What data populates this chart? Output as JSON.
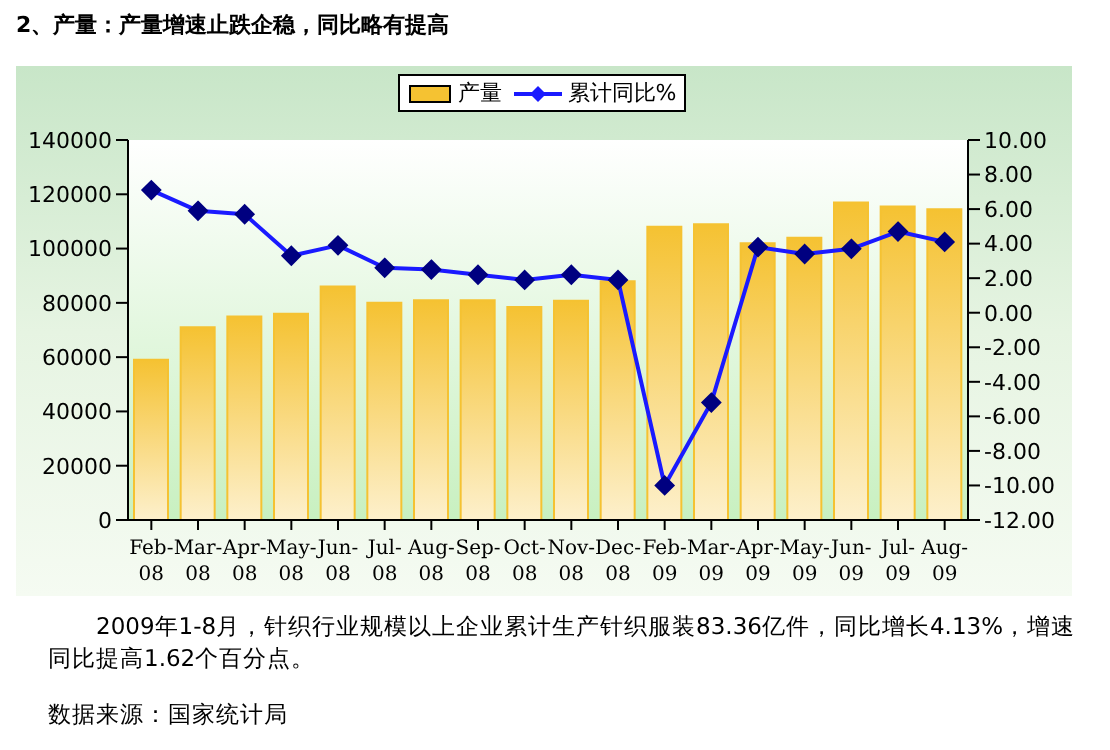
{
  "chart_data": {
    "type": "bar",
    "title": "2、产量：产量增速止跌企稳，同比略有提高",
    "categories": [
      "Feb-08",
      "Mar-08",
      "Apr-08",
      "May-08",
      "Jun-08",
      "Jul-08",
      "Aug-08",
      "Sep-08",
      "Oct-08",
      "Nov-08",
      "Dec-08",
      "Feb-09",
      "Mar-09",
      "Apr-09",
      "May-09",
      "Jun-09",
      "Jul-09",
      "Aug-09"
    ],
    "series": [
      {
        "name": "产量",
        "color": "#f5c232",
        "values": [
          59000,
          71000,
          75000,
          76000,
          86000,
          80000,
          81000,
          81000,
          78500,
          80800,
          88000,
          108000,
          109000,
          102000,
          104000,
          117000,
          115500,
          114500
        ]
      },
      {
        "name": "累计同比%",
        "type": "line",
        "axis": "y2",
        "color": "#1a1aff",
        "marker": "diamond",
        "values": [
          7.1,
          5.9,
          5.7,
          3.3,
          3.9,
          2.6,
          2.5,
          2.2,
          1.9,
          2.2,
          1.9,
          -10.0,
          -5.2,
          3.8,
          3.4,
          3.7,
          4.7,
          4.1
        ]
      }
    ],
    "ylim": [
      0,
      140000
    ],
    "yticks": [
      0,
      20000,
      40000,
      60000,
      80000,
      100000,
      120000,
      140000
    ],
    "y2lim": [
      -12,
      10
    ],
    "y2ticks": [
      {
        "value": -12,
        "label": "-12.00"
      },
      {
        "value": -10,
        "label": "-10.00"
      },
      {
        "value": -8,
        "label": "-8.00"
      },
      {
        "value": -6,
        "label": "-6.00"
      },
      {
        "value": -4,
        "label": "-4.00"
      },
      {
        "value": -2,
        "label": "-2.00"
      },
      {
        "value": 0,
        "label": "0.00"
      },
      {
        "value": 2,
        "label": "2.00"
      },
      {
        "value": 4,
        "label": "4.00"
      },
      {
        "value": 6,
        "label": "6.00"
      },
      {
        "value": 8,
        "label": "8.00"
      },
      {
        "value": 10,
        "label": "10.00"
      }
    ],
    "grid": false,
    "legend": "top",
    "annotations": [
      "2009年1-8月，针织行业规模以上企业累计生产针织服装83.36亿件，同比增长4.13%，增速同比提高1.62个百分点。",
      "数据来源：国家统计局"
    ]
  }
}
